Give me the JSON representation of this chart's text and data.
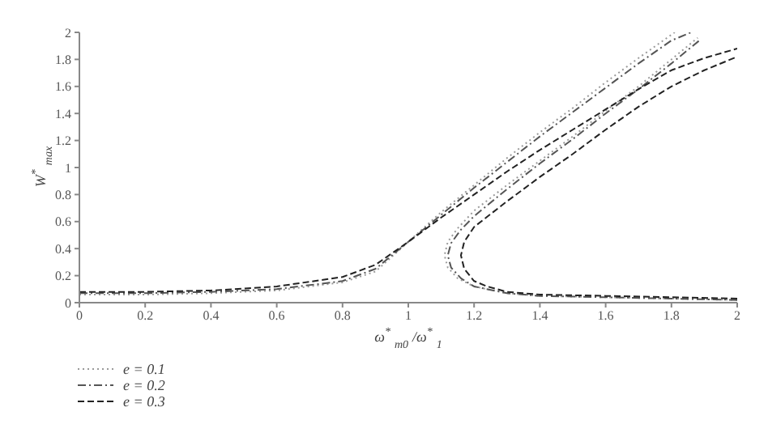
{
  "chart_data": {
    "type": "line",
    "xlabel": "ω$^{*}$$_{m0}$/ω$^{*}$$_{1}$",
    "ylabel": "W$^{*}$$_{max}$",
    "xlim": [
      0,
      2
    ],
    "xticks": [
      0,
      0.2,
      0.4,
      0.6,
      0.8,
      1,
      1.2,
      1.4,
      1.6,
      1.8,
      2
    ],
    "ylim": [
      0,
      2
    ],
    "yticks": [
      0,
      0.2,
      0.4,
      0.6,
      0.8,
      1,
      1.2,
      1.4,
      1.6,
      1.8,
      2
    ],
    "grid": false,
    "legend": "bottom left",
    "marker": "none",
    "series": [
      {
        "name": "e = 0.1",
        "color": "#9a9a9a",
        "line_style": "dotted",
        "x": [
          0,
          0.2,
          0.4,
          0.6,
          0.8,
          0.9,
          1.0,
          1.05,
          1.1,
          1.2,
          1.3,
          1.4,
          1.5,
          1.6,
          1.7,
          1.81
        ],
        "values": [
          0.06,
          0.06,
          0.07,
          0.09,
          0.15,
          0.23,
          0.45,
          0.56,
          0.67,
          0.87,
          1.07,
          1.26,
          1.44,
          1.63,
          1.81,
          2.0
        ]
      },
      {
        "color": "#9a9a9a",
        "line_style": "dotted",
        "x": [
          2,
          1.8,
          1.6,
          1.4,
          1.3,
          1.2,
          1.15,
          1.12,
          1.11,
          1.12,
          1.15,
          1.2,
          1.3,
          1.4,
          1.5,
          1.6,
          1.7,
          1.8,
          1.88
        ],
        "values": [
          0.02,
          0.03,
          0.04,
          0.05,
          0.07,
          0.12,
          0.18,
          0.26,
          0.35,
          0.45,
          0.55,
          0.68,
          0.87,
          1.05,
          1.23,
          1.42,
          1.6,
          1.8,
          1.96
        ]
      },
      {
        "name": "e = 0.2",
        "color": "#555555",
        "line_style": "dashdot",
        "x": [
          0,
          0.2,
          0.4,
          0.6,
          0.8,
          0.9,
          1.0,
          1.05,
          1.1,
          1.2,
          1.3,
          1.4,
          1.5,
          1.6,
          1.7,
          1.8,
          1.86
        ],
        "values": [
          0.07,
          0.07,
          0.08,
          0.1,
          0.16,
          0.25,
          0.45,
          0.55,
          0.65,
          0.85,
          1.04,
          1.23,
          1.41,
          1.59,
          1.77,
          1.94,
          2.0
        ]
      },
      {
        "color": "#555555",
        "line_style": "dashdot",
        "x": [
          2,
          1.8,
          1.6,
          1.4,
          1.3,
          1.2,
          1.16,
          1.13,
          1.12,
          1.13,
          1.16,
          1.2,
          1.3,
          1.4,
          1.5,
          1.6,
          1.7,
          1.8,
          1.89
        ],
        "values": [
          0.02,
          0.03,
          0.04,
          0.05,
          0.07,
          0.12,
          0.18,
          0.26,
          0.35,
          0.44,
          0.54,
          0.64,
          0.84,
          1.03,
          1.21,
          1.4,
          1.58,
          1.77,
          1.95
        ]
      },
      {
        "name": "e = 0.3",
        "color": "#222222",
        "line_style": "dashed",
        "x": [
          0,
          0.2,
          0.4,
          0.6,
          0.8,
          0.9,
          1.0,
          1.05,
          1.1,
          1.2,
          1.3,
          1.4,
          1.5,
          1.6,
          1.7,
          1.8,
          1.9,
          2
        ],
        "values": [
          0.08,
          0.08,
          0.09,
          0.12,
          0.19,
          0.28,
          0.45,
          0.54,
          0.63,
          0.8,
          0.97,
          1.13,
          1.28,
          1.43,
          1.58,
          1.72,
          1.81,
          1.88
        ]
      },
      {
        "color": "#222222",
        "line_style": "dashed",
        "x": [
          2,
          1.8,
          1.6,
          1.4,
          1.3,
          1.24,
          1.2,
          1.17,
          1.16,
          1.17,
          1.2,
          1.3,
          1.4,
          1.5,
          1.6,
          1.7,
          1.8,
          1.9,
          2
        ],
        "values": [
          0.03,
          0.04,
          0.05,
          0.06,
          0.08,
          0.12,
          0.16,
          0.25,
          0.35,
          0.45,
          0.56,
          0.75,
          0.93,
          1.1,
          1.28,
          1.45,
          1.6,
          1.72,
          1.82
        ]
      }
    ]
  }
}
